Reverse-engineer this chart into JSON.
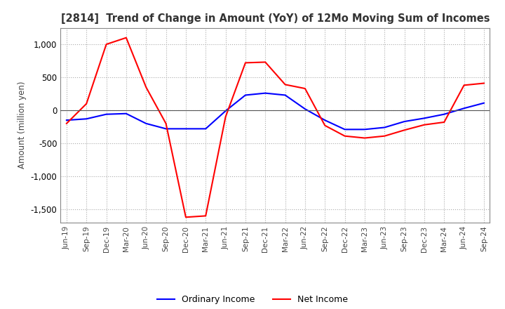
{
  "title": "[2814]  Trend of Change in Amount (YoY) of 12Mo Moving Sum of Incomes",
  "ylabel": "Amount (million yen)",
  "ylim": [
    -1700,
    1250
  ],
  "yticks": [
    -1500,
    -1000,
    -500,
    0,
    500,
    1000
  ],
  "background_color": "#ffffff",
  "grid_color": "#aaaaaa",
  "ordinary_income_color": "#0000ff",
  "net_income_color": "#ff0000",
  "x_labels": [
    "Jun-19",
    "Sep-19",
    "Dec-19",
    "Mar-20",
    "Jun-20",
    "Sep-20",
    "Dec-20",
    "Mar-21",
    "Jun-21",
    "Sep-21",
    "Dec-21",
    "Mar-22",
    "Jun-22",
    "Sep-22",
    "Dec-22",
    "Mar-23",
    "Jun-23",
    "Sep-23",
    "Dec-23",
    "Mar-24",
    "Jun-24",
    "Sep-24"
  ],
  "ordinary_income": [
    -150,
    -130,
    -60,
    -50,
    -200,
    -280,
    -280,
    -280,
    -10,
    230,
    260,
    230,
    20,
    -150,
    -290,
    -290,
    -260,
    -170,
    -120,
    -60,
    30,
    110
  ],
  "net_income": [
    -200,
    100,
    1000,
    1100,
    350,
    -200,
    -1620,
    -1600,
    -100,
    720,
    730,
    390,
    330,
    -230,
    -390,
    -420,
    -390,
    -300,
    -220,
    -180,
    380,
    410
  ]
}
